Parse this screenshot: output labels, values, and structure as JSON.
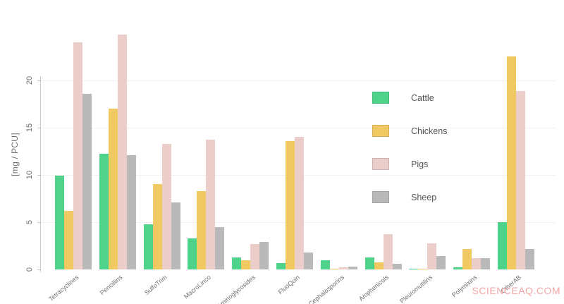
{
  "watermark": {
    "text": "SCIENCEAQ.COM",
    "color": "#f2a6a6"
  },
  "chart_data": {
    "type": "bar",
    "title": "",
    "xlabel": "",
    "ylabel": "[mg / PCU]",
    "yticks": [
      0,
      5,
      10,
      15,
      20
    ],
    "ylim": [
      0,
      25.5
    ],
    "grid": "faint horizontal gridlines at y ticks",
    "legend_position": "center-right",
    "categories": [
      "Tetracyclines",
      "Pencillins",
      "SulfoTrim",
      "MacroLinco",
      "Aminoglycosides",
      "FluoQuin",
      "Cephalosporins",
      "Amphenicols",
      "Pleuromutilins",
      "Polymixins",
      "OtherAB"
    ],
    "series": [
      {
        "name": "Cattle",
        "color": "#4fd38a",
        "values": [
          9.9,
          12.2,
          4.8,
          3.3,
          1.3,
          0.7,
          1.0,
          1.3,
          0.05,
          0.2,
          5.0
        ]
      },
      {
        "name": "Chickens",
        "color": "#f0c963",
        "values": [
          6.2,
          17.0,
          9.0,
          8.3,
          1.0,
          13.6,
          0.1,
          0.75,
          0.05,
          2.2,
          22.5
        ]
      },
      {
        "name": "Pigs",
        "color": "#ebcdc9",
        "values": [
          24.0,
          24.8,
          13.3,
          13.7,
          2.7,
          14.0,
          0.2,
          3.7,
          2.75,
          1.2,
          18.9
        ]
      },
      {
        "name": "Sheep",
        "color": "#b9b9b9",
        "values": [
          18.6,
          12.1,
          7.1,
          4.5,
          2.9,
          1.8,
          0.3,
          0.6,
          1.4,
          1.2,
          2.2
        ]
      }
    ]
  }
}
